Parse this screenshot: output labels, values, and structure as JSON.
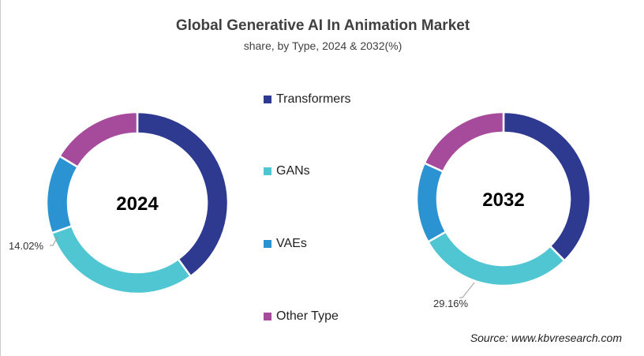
{
  "chart_data": {
    "type": "pie",
    "subtype": "donut",
    "title": "Global Generative AI In Animation Market",
    "subtitle": "share, by Type, 2024 & 2032(%)",
    "categories": [
      "Transformers",
      "GANs",
      "VAEs",
      "Other Type"
    ],
    "colors": [
      "#2e3990",
      "#4fc6d2",
      "#2b93d1",
      "#a64b9c"
    ],
    "legend_position": "center",
    "charts": [
      {
        "label": "2024",
        "values": [
          40.0,
          29.6,
          14.02,
          16.38
        ],
        "data_label": "14.02%"
      },
      {
        "label": "2032",
        "values": [
          37.6,
          29.16,
          15.0,
          18.24
        ],
        "data_label": "29.16%"
      }
    ]
  },
  "source": "Source: www.kbvresearch.com"
}
